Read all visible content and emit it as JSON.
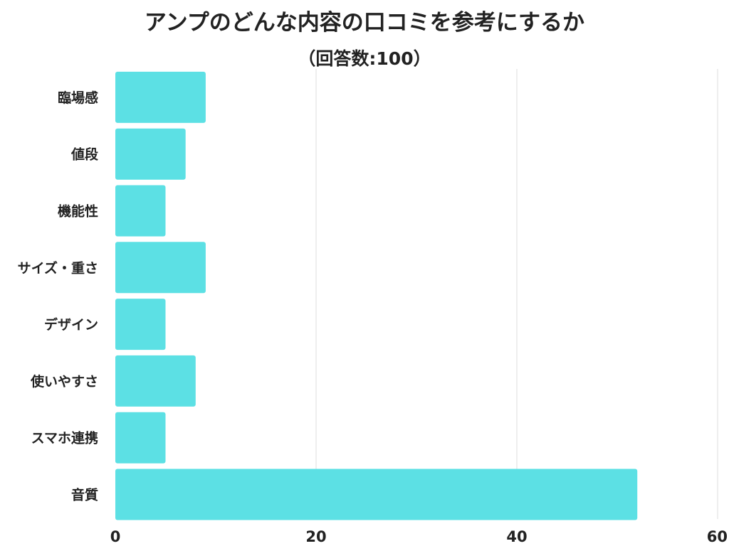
{
  "chart_data": {
    "type": "bar",
    "orientation": "horizontal",
    "title": "アンプのどんな内容の口コミを参考にするか",
    "subtitle": "（回答数:100）",
    "categories": [
      "臨場感",
      "値段",
      "機能性",
      "サイズ・重さ",
      "デザイン",
      "使いやすさ",
      "スマホ連携",
      "音質"
    ],
    "values": [
      9,
      7,
      5,
      9,
      5,
      8,
      5,
      52
    ],
    "xlim": [
      0,
      60
    ],
    "xticks": [
      0,
      20,
      40,
      60
    ],
    "grid": true,
    "bar_color": "#5ce0e4",
    "grid_color": "#dddddd"
  }
}
